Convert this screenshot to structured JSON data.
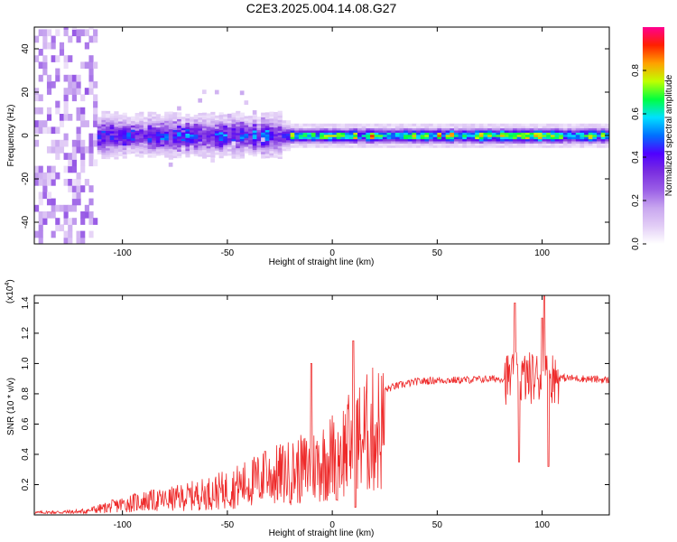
{
  "title": "C2E3.2025.004.14.08.G27",
  "chart_data": [
    {
      "type": "heatmap",
      "xlabel": "Height of straight line (km)",
      "ylabel": "Frequency (Hz)",
      "xlim": [
        -142,
        132
      ],
      "ylim": [
        -50,
        50
      ],
      "xticks": [
        -100,
        -50,
        0,
        50,
        100
      ],
      "yticks": [
        -40,
        -20,
        0,
        20,
        40
      ],
      "colorbar": {
        "label": "Normalized spectral amplitude",
        "range": [
          0,
          1
        ],
        "ticks": [
          "0.0",
          "0.2",
          "0.4",
          "0.6",
          "0.8"
        ],
        "colormap": [
          "#ffffff",
          "#e2cdf6",
          "#c8a6ef",
          "#9a5ee6",
          "#7a2ee0",
          "#5000ff",
          "#0070ff",
          "#00e0ff",
          "#00ff40",
          "#c0ff00",
          "#ffa000",
          "#ff2000",
          "#ff0090"
        ]
      },
      "band": {
        "center_hz": 0,
        "noise_region_end_km": -112,
        "band_start_km": -115,
        "turbulent_end_km": -25,
        "narrow_start_km": -20
      },
      "grid": false
    },
    {
      "type": "line",
      "xlabel": "Height of straight line (km)",
      "ylabel": "SNR (10 * v/v)",
      "exponent_label": "(x10",
      "exponent_sup": "4",
      "exponent_close": ")",
      "color": "#ee2a2a",
      "xlim": [
        -142,
        132
      ],
      "ylim": [
        0,
        1.45
      ],
      "xticks": [
        -100,
        -50,
        0,
        50,
        100
      ],
      "yticks": [
        0.2,
        0.4,
        0.6,
        0.8,
        1.0,
        1.2,
        1.4
      ],
      "ytick_labels": [
        "0.2",
        "0.4",
        "0.6",
        "0.8",
        "1.0",
        "1.2",
        "1.4"
      ],
      "envelope": [
        {
          "x": -142,
          "y": 0.02
        },
        {
          "x": -120,
          "y": 0.03
        },
        {
          "x": -110,
          "y": 0.06
        },
        {
          "x": -100,
          "y": 0.1
        },
        {
          "x": -90,
          "y": 0.13
        },
        {
          "x": -80,
          "y": 0.14
        },
        {
          "x": -70,
          "y": 0.17
        },
        {
          "x": -60,
          "y": 0.2
        },
        {
          "x": -50,
          "y": 0.24
        },
        {
          "x": -40,
          "y": 0.3
        },
        {
          "x": -30,
          "y": 0.36
        },
        {
          "x": -20,
          "y": 0.4
        },
        {
          "x": -10,
          "y": 0.45
        },
        {
          "x": 0,
          "y": 0.55
        },
        {
          "x": 10,
          "y": 0.68
        },
        {
          "x": 20,
          "y": 0.8
        },
        {
          "x": 30,
          "y": 0.85
        },
        {
          "x": 40,
          "y": 0.88
        },
        {
          "x": 50,
          "y": 0.89
        },
        {
          "x": 60,
          "y": 0.89
        },
        {
          "x": 80,
          "y": 0.9
        },
        {
          "x": 100,
          "y": 0.91
        },
        {
          "x": 120,
          "y": 0.9
        },
        {
          "x": 132,
          "y": 0.89
        }
      ],
      "notable_points": [
        {
          "x": -32,
          "y": 0.42
        },
        {
          "x": -10,
          "y": 1.0
        },
        {
          "x": 2,
          "y": 0.1
        },
        {
          "x": 10,
          "y": 1.15
        },
        {
          "x": 11,
          "y": 0.05
        },
        {
          "x": 87,
          "y": 1.4
        },
        {
          "x": 89,
          "y": 0.35
        },
        {
          "x": 100,
          "y": 1.3
        },
        {
          "x": 101,
          "y": 1.45
        },
        {
          "x": 103,
          "y": 0.32
        }
      ],
      "grid": false
    }
  ]
}
